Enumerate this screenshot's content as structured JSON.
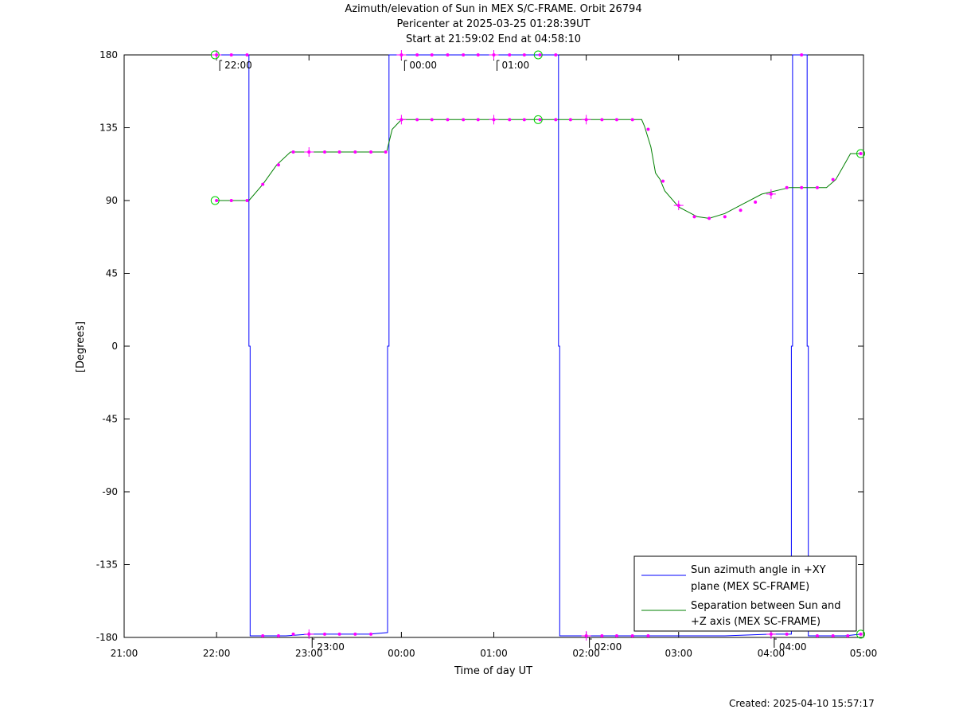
{
  "header": {
    "title_line1": "Azimuth/elevation of Sun in MEX S/C-FRAME.  Orbit 26794",
    "title_line2": "Pericenter at 2025-03-25 01:28:39UT",
    "title_line3": "Start at 21:59:02 End at 04:58:10"
  },
  "footer": {
    "created": "Created: 2025-04-10 15:57:17"
  },
  "chart_data": {
    "type": "line",
    "title": "Azimuth/elevation of Sun in MEX S/C-FRAME.  Orbit 26794",
    "subtitle": [
      "Pericenter at 2025-03-25 01:28:39UT",
      "Start at 21:59:02 End at 04:58:10"
    ],
    "xlabel": "Time of day UT",
    "ylabel": "[Degrees]",
    "x_unit": "hours since 21:00 UT (2025-03-24)",
    "xlim": [
      0,
      8
    ],
    "ylim": [
      -180,
      180
    ],
    "x_ticks": [
      {
        "v": 0,
        "label": "21:00"
      },
      {
        "v": 1,
        "label": "22:00"
      },
      {
        "v": 2,
        "label": "23:00"
      },
      {
        "v": 3,
        "label": "00:00"
      },
      {
        "v": 4,
        "label": "01:00"
      },
      {
        "v": 5,
        "label": "02:00"
      },
      {
        "v": 6,
        "label": "03:00"
      },
      {
        "v": 7,
        "label": "04:00"
      },
      {
        "v": 8,
        "label": "05:00"
      }
    ],
    "y_ticks": [
      180,
      135,
      90,
      45,
      0,
      -45,
      -90,
      -135,
      -180
    ],
    "grid": false,
    "legend_position": "bottom-right",
    "series": [
      {
        "name": "Sun azimuth angle in +XY plane (MEX SC-FRAME)",
        "legend_lines": [
          "Sun azimuth angle in +XY",
          "plane (MEX SC-FRAME)"
        ],
        "color": "#0000ff",
        "x": [
          0.984,
          1.35,
          1.35,
          1.363,
          1.363,
          1.55,
          1.75,
          2.0,
          2.25,
          2.5,
          2.65,
          2.85,
          2.85,
          2.866,
          2.866,
          3.1,
          3.5,
          4.0,
          4.5,
          4.7,
          4.7,
          4.713,
          4.713,
          5.0,
          5.5,
          5.9,
          6.0,
          6.5,
          7.0,
          7.22,
          7.22,
          7.233,
          7.233,
          7.39,
          7.39,
          7.403,
          7.403,
          7.6,
          7.8,
          7.97
        ],
        "y": [
          180,
          180,
          0,
          0,
          -179,
          -179,
          -179,
          -178,
          -178,
          -178,
          -178,
          -177,
          0,
          0,
          180,
          180,
          180,
          180,
          180,
          180,
          0,
          0,
          -179,
          -179,
          -179,
          -179,
          -179,
          -179,
          -178,
          -178,
          0,
          0,
          180,
          180,
          0,
          0,
          -179,
          -179,
          -179,
          -178
        ]
      },
      {
        "name": "Separation between Sun and +Z axis (MEX SC-FRAME)",
        "legend_lines": [
          "Separation between Sun and",
          "+Z axis (MEX SC-FRAME)"
        ],
        "color": "#008000",
        "x": [
          0.984,
          1.35,
          1.5,
          1.65,
          1.8,
          2.0,
          2.5,
          2.84,
          2.9,
          3.0,
          3.5,
          4.0,
          4.5,
          5.0,
          5.5,
          5.6,
          5.63,
          5.7,
          5.75,
          5.8,
          5.85,
          6.0,
          6.2,
          6.33,
          6.5,
          6.7,
          6.9,
          7.2,
          7.5,
          7.6,
          7.7,
          7.8,
          7.86,
          7.97
        ],
        "y": [
          90,
          90,
          100,
          112,
          120,
          120,
          120,
          120,
          134,
          140,
          140,
          140,
          140,
          140,
          140,
          140,
          136,
          123,
          107,
          103,
          96,
          86,
          80,
          79,
          82,
          88,
          94,
          98,
          98,
          98,
          103,
          113,
          119,
          119
        ]
      }
    ],
    "marker_color": "#ff00ff",
    "markers": {
      "azimuth": {
        "x": [
          1.0,
          1.16,
          1.33,
          1.5,
          1.67,
          1.83,
          2.0,
          2.17,
          2.33,
          2.5,
          2.67,
          3.0,
          3.17,
          3.33,
          3.5,
          3.67,
          3.83,
          4.0,
          4.17,
          4.33,
          4.5,
          4.67,
          5.0,
          5.17,
          5.33,
          5.5,
          5.67,
          7.0,
          7.17,
          7.33,
          7.5,
          7.67,
          7.83,
          7.97
        ],
        "y": [
          180,
          180,
          180,
          -179,
          -179,
          -178,
          -178,
          -178,
          -178,
          -178,
          -178,
          180,
          180,
          180,
          180,
          180,
          180,
          180,
          180,
          180,
          180,
          180,
          -179,
          -179,
          -179,
          -179,
          -179,
          -178,
          -178,
          180,
          -179,
          -179,
          -179,
          -178
        ]
      },
      "separation": {
        "x": [
          1.0,
          1.16,
          1.33,
          1.5,
          1.67,
          1.83,
          2.0,
          2.17,
          2.33,
          2.5,
          2.67,
          2.83,
          3.0,
          3.17,
          3.33,
          3.5,
          3.67,
          3.83,
          4.0,
          4.17,
          4.33,
          4.5,
          4.67,
          4.83,
          5.0,
          5.17,
          5.33,
          5.5,
          5.67,
          5.83,
          6.0,
          6.17,
          6.33,
          6.5,
          6.67,
          6.83,
          7.0,
          7.17,
          7.33,
          7.5,
          7.67,
          7.97
        ],
        "y": [
          90,
          90,
          90,
          100,
          112,
          120,
          120,
          120,
          120,
          120,
          120,
          120,
          140,
          140,
          140,
          140,
          140,
          140,
          140,
          140,
          140,
          140,
          140,
          140,
          140,
          140,
          140,
          140,
          134,
          102,
          87,
          80,
          79,
          80,
          84,
          89,
          94,
          98,
          98,
          98,
          103,
          119
        ]
      },
      "crosses": [
        {
          "x": 1.0,
          "y": 180
        },
        {
          "x": 2.0,
          "y": 120
        },
        {
          "x": 2.0,
          "y": -178
        },
        {
          "x": 3.0,
          "y": 180
        },
        {
          "x": 3.0,
          "y": 140
        },
        {
          "x": 4.0,
          "y": 180
        },
        {
          "x": 4.0,
          "y": 140
        },
        {
          "x": 5.0,
          "y": 140
        },
        {
          "x": 5.0,
          "y": -179
        },
        {
          "x": 6.0,
          "y": 87
        },
        {
          "x": 7.0,
          "y": 94
        },
        {
          "x": 7.0,
          "y": -178
        }
      ],
      "circles": [
        {
          "x": 0.984,
          "y": 180
        },
        {
          "x": 0.984,
          "y": 90
        },
        {
          "x": 4.48,
          "y": 180
        },
        {
          "x": 4.48,
          "y": 140
        },
        {
          "x": 7.97,
          "y": 119
        },
        {
          "x": 7.97,
          "y": -178
        }
      ]
    },
    "time_annotations": [
      {
        "x": 1.0,
        "y": 180,
        "label": "22:00",
        "side": "top"
      },
      {
        "x": 3.0,
        "y": 180,
        "label": "00:00",
        "side": "top"
      },
      {
        "x": 4.0,
        "y": 180,
        "label": "01:00",
        "side": "top"
      },
      {
        "x": 2.0,
        "y": -180,
        "label": "23:00",
        "side": "bottom"
      },
      {
        "x": 5.0,
        "y": -180,
        "label": "02:00",
        "side": "bottom"
      },
      {
        "x": 7.0,
        "y": -180,
        "label": "04:00",
        "side": "bottom"
      }
    ]
  }
}
